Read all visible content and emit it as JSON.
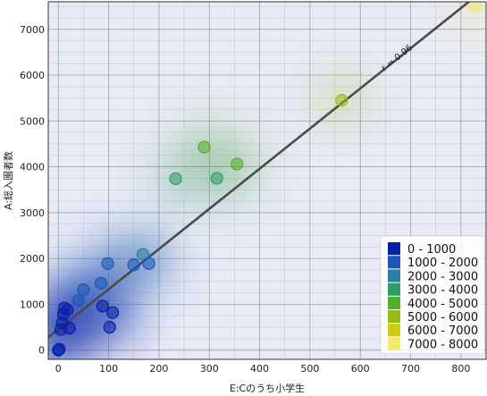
{
  "chart_data": {
    "type": "scatter",
    "xlabel": "E:Cのうち小学生",
    "ylabel": "A:総入園者数",
    "xlim": [
      -20,
      850
    ],
    "ylim": [
      -200,
      7600
    ],
    "xticks": [
      0,
      100,
      200,
      300,
      400,
      500,
      600,
      700,
      800
    ],
    "yticks": [
      0,
      1000,
      2000,
      3000,
      4000,
      5000,
      6000,
      7000
    ],
    "grid": true,
    "regression": {
      "label": "r = 0.96",
      "x0": -20,
      "y0": 280,
      "x1": 850,
      "y1": 7900
    },
    "points": [
      {
        "x": 0,
        "y": 0
      },
      {
        "x": 2,
        "y": 20
      },
      {
        "x": 5,
        "y": 450
      },
      {
        "x": 8,
        "y": 600
      },
      {
        "x": 10,
        "y": 780
      },
      {
        "x": 12,
        "y": 920
      },
      {
        "x": 18,
        "y": 880
      },
      {
        "x": 22,
        "y": 480
      },
      {
        "x": 40,
        "y": 1080
      },
      {
        "x": 50,
        "y": 1320
      },
      {
        "x": 85,
        "y": 1460
      },
      {
        "x": 88,
        "y": 960
      },
      {
        "x": 98,
        "y": 1890
      },
      {
        "x": 102,
        "y": 500
      },
      {
        "x": 108,
        "y": 820
      },
      {
        "x": 150,
        "y": 1860
      },
      {
        "x": 168,
        "y": 2090
      },
      {
        "x": 180,
        "y": 1890
      },
      {
        "x": 233,
        "y": 3740
      },
      {
        "x": 290,
        "y": 4430
      },
      {
        "x": 315,
        "y": 3750
      },
      {
        "x": 355,
        "y": 4060
      },
      {
        "x": 563,
        "y": 5450
      },
      {
        "x": 828,
        "y": 7520
      }
    ],
    "legend": {
      "placement": "bottom-right",
      "entries": [
        {
          "label": "0 - 1000",
          "color": "#0a1fa8"
        },
        {
          "label": "1000 - 2000",
          "color": "#1a58b8"
        },
        {
          "label": "2000 - 3000",
          "color": "#2a7fa2"
        },
        {
          "label": "3000 - 4000",
          "color": "#2f9a6a"
        },
        {
          "label": "4000 - 5000",
          "color": "#55ad2c"
        },
        {
          "label": "5000 - 6000",
          "color": "#97bc16"
        },
        {
          "label": "6000 - 7000",
          "color": "#d0c915"
        },
        {
          "label": "7000 - 8000",
          "color": "#f4e96a"
        }
      ]
    }
  }
}
